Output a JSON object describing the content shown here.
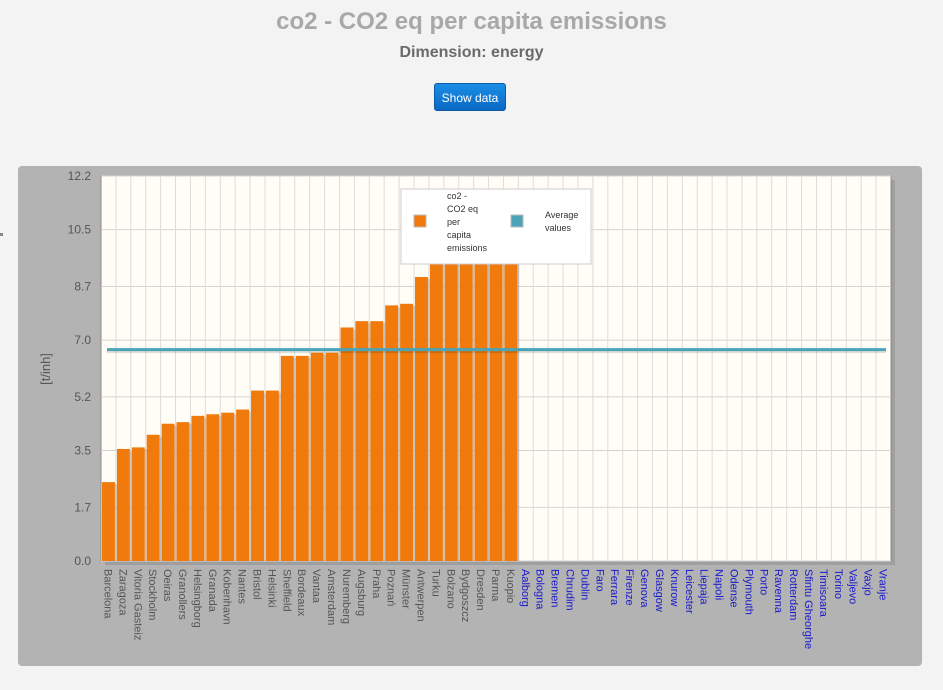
{
  "header": {
    "title": "co2 - CO2 eq per capita emissions",
    "subtitle": "Dimension: energy",
    "show_data_label": "Show data"
  },
  "colors": {
    "bar": "#f07a0b",
    "average_line": "#4aa3b6",
    "with_data_label": "#555555",
    "no_data_label": "#1a1acc",
    "plot_background": "#fffdf5",
    "panel": "#b3b3b3"
  },
  "legend": {
    "position": "top-center",
    "items": [
      {
        "label": "co2 - CO2 eq per capita emissions",
        "color": "#f07a0b"
      },
      {
        "label": "Average values",
        "color": "#4aa3b6"
      }
    ]
  },
  "chart_data": {
    "type": "bar",
    "title": "co2 - CO2 eq per capita emissions",
    "subtitle": "Dimension: energy",
    "xlabel": "",
    "ylabel": "[t/inh]",
    "ylim": [
      0,
      12.2
    ],
    "yticks": [
      "0.0",
      "1.7",
      "3.5",
      "5.2",
      "7.0",
      "8.7",
      "10.5",
      "12.2"
    ],
    "grid": true,
    "legend_placement": "top-center",
    "categories": [
      "Barcelona",
      "Zaragoza",
      "Vitoria Gasteiz",
      "Stockholm",
      "Oeiras",
      "Granollers",
      "Helsingborg",
      "Granada",
      "Kobenhavn",
      "Nantes",
      "Bristol",
      "Helsinki",
      "Sheffield",
      "Bordeaux",
      "Vantaa",
      "Amsterdam",
      "Nuremberg",
      "Augsburg",
      "Praha",
      "Poznań",
      "Münster",
      "Antwerpen",
      "Turku",
      "Bolzano",
      "Bydgoszcz",
      "Dresden",
      "Parma",
      "Kuopio",
      "Aalborg",
      "Bologna",
      "Bremen",
      "Chrudim",
      "Dublin",
      "Faro",
      "Ferrara",
      "Firenze",
      "Genova",
      "Glasgow",
      "Knurow",
      "Leicester",
      "Liepaja",
      "Napoli",
      "Odense",
      "Plymouth",
      "Porto",
      "Ravenna",
      "Rotterdam",
      "Sfintu Gheorghe",
      "Timisoara",
      "Torino",
      "Valjevo",
      "Vaxjo",
      "Vranje"
    ],
    "series": [
      {
        "name": "co2 - CO2 eq per capita emissions",
        "values": [
          2.5,
          3.55,
          3.6,
          4.0,
          4.35,
          4.4,
          4.6,
          4.65,
          4.7,
          4.8,
          5.4,
          5.4,
          6.5,
          6.5,
          6.6,
          6.6,
          7.4,
          7.6,
          7.6,
          8.1,
          8.15,
          9.0,
          9.45,
          9.6,
          9.6,
          9.6,
          9.6,
          9.6,
          null,
          null,
          null,
          null,
          null,
          null,
          null,
          null,
          null,
          null,
          null,
          null,
          null,
          null,
          null,
          null,
          null,
          null,
          null,
          null,
          null,
          null,
          null,
          null,
          null
        ]
      },
      {
        "name": "Average values",
        "type": "line",
        "value": 6.7
      }
    ]
  }
}
